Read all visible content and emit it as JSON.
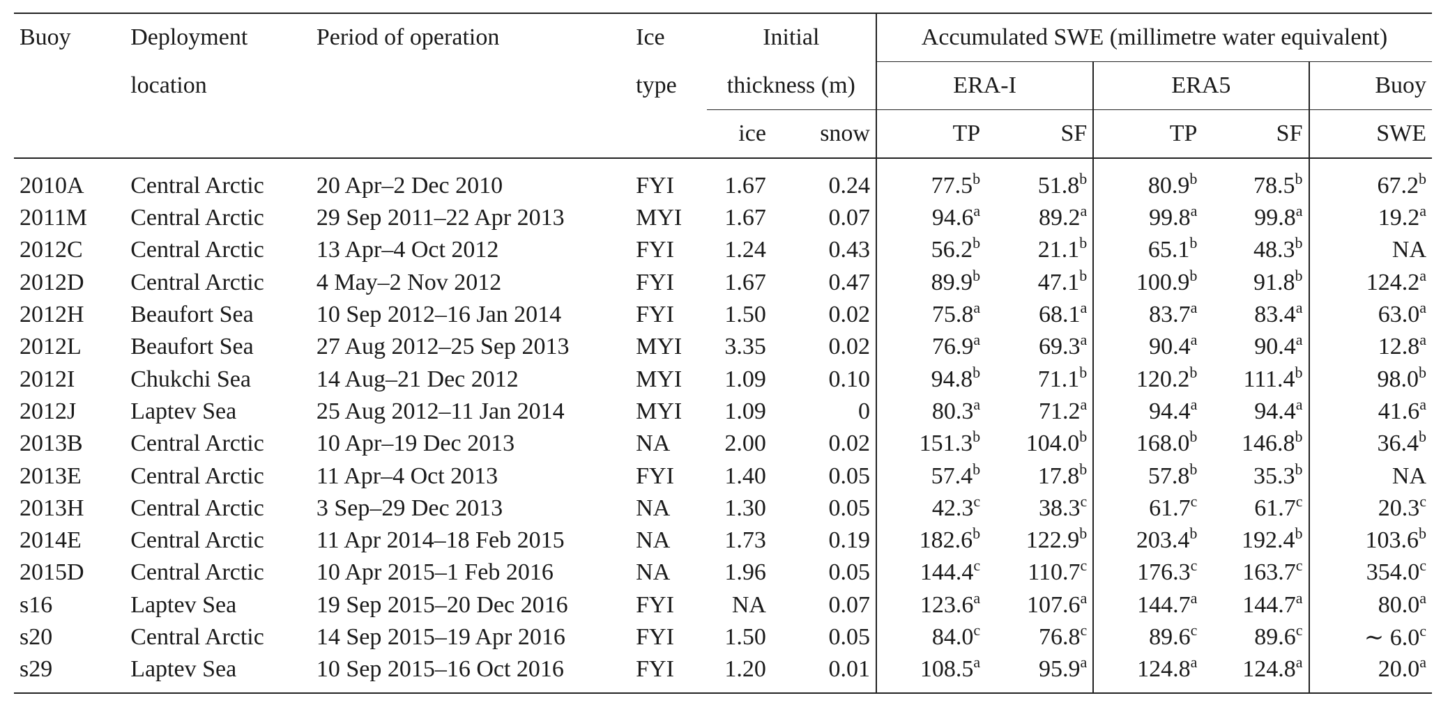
{
  "header": {
    "buoy": "Buoy",
    "deployment_line1": "Deployment",
    "deployment_line2": "location",
    "period": "Period of operation",
    "ice_type_line1": "Ice",
    "ice_type_line2": "type",
    "initial_line1": "Initial",
    "initial_line2": "thickness (m)",
    "ice": "ice",
    "snow": "snow",
    "accumulated": "Accumulated SWE (millimetre water equivalent)",
    "era_i": "ERA-I",
    "era5": "ERA5",
    "buoy_group": "Buoy",
    "tp": "TP",
    "sf": "SF",
    "swe": "SWE"
  },
  "rows": [
    {
      "buoy": "2010A",
      "location": "Central Arctic",
      "period": "20 Apr–2 Dec 2010",
      "ice_type": "FYI",
      "ice": "1.67",
      "snow": "0.24",
      "erai_tp": "77.5",
      "erai_tp_note": "b",
      "erai_sf": "51.8",
      "erai_sf_note": "b",
      "era5_tp": "80.9",
      "era5_tp_note": "b",
      "era5_sf": "78.5",
      "era5_sf_note": "b",
      "swe": "67.2",
      "swe_note": "b"
    },
    {
      "buoy": "2011M",
      "location": "Central Arctic",
      "period": "29 Sep 2011–22 Apr 2013",
      "ice_type": "MYI",
      "ice": "1.67",
      "snow": "0.07",
      "erai_tp": "94.6",
      "erai_tp_note": "a",
      "erai_sf": "89.2",
      "erai_sf_note": "a",
      "era5_tp": "99.8",
      "era5_tp_note": "a",
      "era5_sf": "99.8",
      "era5_sf_note": "a",
      "swe": "19.2",
      "swe_note": "a"
    },
    {
      "buoy": "2012C",
      "location": "Central Arctic",
      "period": "13 Apr–4 Oct 2012",
      "ice_type": "FYI",
      "ice": "1.24",
      "snow": "0.43",
      "erai_tp": "56.2",
      "erai_tp_note": "b",
      "erai_sf": "21.1",
      "erai_sf_note": "b",
      "era5_tp": "65.1",
      "era5_tp_note": "b",
      "era5_sf": "48.3",
      "era5_sf_note": "b",
      "swe": "NA",
      "swe_note": ""
    },
    {
      "buoy": "2012D",
      "location": "Central Arctic",
      "period": "4 May–2 Nov 2012",
      "ice_type": "FYI",
      "ice": "1.67",
      "snow": "0.47",
      "erai_tp": "89.9",
      "erai_tp_note": "b",
      "erai_sf": "47.1",
      "erai_sf_note": "b",
      "era5_tp": "100.9",
      "era5_tp_note": "b",
      "era5_sf": "91.8",
      "era5_sf_note": "b",
      "swe": "124.2",
      "swe_note": "a"
    },
    {
      "buoy": "2012H",
      "location": "Beaufort Sea",
      "period": "10 Sep 2012–16 Jan 2014",
      "ice_type": "FYI",
      "ice": "1.50",
      "snow": "0.02",
      "erai_tp": "75.8",
      "erai_tp_note": "a",
      "erai_sf": "68.1",
      "erai_sf_note": "a",
      "era5_tp": "83.7",
      "era5_tp_note": "a",
      "era5_sf": "83.4",
      "era5_sf_note": "a",
      "swe": "63.0",
      "swe_note": "a"
    },
    {
      "buoy": "2012L",
      "location": "Beaufort Sea",
      "period": "27 Aug 2012–25 Sep 2013",
      "ice_type": "MYI",
      "ice": "3.35",
      "snow": "0.02",
      "erai_tp": "76.9",
      "erai_tp_note": "a",
      "erai_sf": "69.3",
      "erai_sf_note": "a",
      "era5_tp": "90.4",
      "era5_tp_note": "a",
      "era5_sf": "90.4",
      "era5_sf_note": "a",
      "swe": "12.8",
      "swe_note": "a"
    },
    {
      "buoy": "2012I",
      "location": "Chukchi Sea",
      "period": "14 Aug–21 Dec 2012",
      "ice_type": "MYI",
      "ice": "1.09",
      "snow": "0.10",
      "erai_tp": "94.8",
      "erai_tp_note": "b",
      "erai_sf": "71.1",
      "erai_sf_note": "b",
      "era5_tp": "120.2",
      "era5_tp_note": "b",
      "era5_sf": "111.4",
      "era5_sf_note": "b",
      "swe": "98.0",
      "swe_note": "b"
    },
    {
      "buoy": "2012J",
      "location": "Laptev Sea",
      "period": "25 Aug 2012–11 Jan 2014",
      "ice_type": "MYI",
      "ice": "1.09",
      "snow": "0",
      "erai_tp": "80.3",
      "erai_tp_note": "a",
      "erai_sf": "71.2",
      "erai_sf_note": "a",
      "era5_tp": "94.4",
      "era5_tp_note": "a",
      "era5_sf": "94.4",
      "era5_sf_note": "a",
      "swe": "41.6",
      "swe_note": "a"
    },
    {
      "buoy": "2013B",
      "location": "Central Arctic",
      "period": "10 Apr–19 Dec 2013",
      "ice_type": "NA",
      "ice": "2.00",
      "snow": "0.02",
      "erai_tp": "151.3",
      "erai_tp_note": "b",
      "erai_sf": "104.0",
      "erai_sf_note": "b",
      "era5_tp": "168.0",
      "era5_tp_note": "b",
      "era5_sf": "146.8",
      "era5_sf_note": "b",
      "swe": "36.4",
      "swe_note": "b"
    },
    {
      "buoy": "2013E",
      "location": "Central Arctic",
      "period": "11 Apr–4 Oct 2013",
      "ice_type": "FYI",
      "ice": "1.40",
      "snow": "0.05",
      "erai_tp": "57.4",
      "erai_tp_note": "b",
      "erai_sf": "17.8",
      "erai_sf_note": "b",
      "era5_tp": "57.8",
      "era5_tp_note": "b",
      "era5_sf": "35.3",
      "era5_sf_note": "b",
      "swe": "NA",
      "swe_note": ""
    },
    {
      "buoy": "2013H",
      "location": "Central Arctic",
      "period": "3 Sep–29 Dec 2013",
      "ice_type": "NA",
      "ice": "1.30",
      "snow": "0.05",
      "erai_tp": "42.3",
      "erai_tp_note": "c",
      "erai_sf": "38.3",
      "erai_sf_note": "c",
      "era5_tp": "61.7",
      "era5_tp_note": "c",
      "era5_sf": "61.7",
      "era5_sf_note": "c",
      "swe": "20.3",
      "swe_note": "c"
    },
    {
      "buoy": "2014E",
      "location": "Central Arctic",
      "period": "11 Apr 2014–18 Feb 2015",
      "ice_type": "NA",
      "ice": "1.73",
      "snow": "0.19",
      "erai_tp": "182.6",
      "erai_tp_note": "b",
      "erai_sf": "122.9",
      "erai_sf_note": "b",
      "era5_tp": "203.4",
      "era5_tp_note": "b",
      "era5_sf": "192.4",
      "era5_sf_note": "b",
      "swe": "103.6",
      "swe_note": "b"
    },
    {
      "buoy": "2015D",
      "location": "Central Arctic",
      "period": "10 Apr 2015–1 Feb 2016",
      "ice_type": "NA",
      "ice": "1.96",
      "snow": "0.05",
      "erai_tp": "144.4",
      "erai_tp_note": "c",
      "erai_sf": "110.7",
      "erai_sf_note": "c",
      "era5_tp": "176.3",
      "era5_tp_note": "c",
      "era5_sf": "163.7",
      "era5_sf_note": "c",
      "swe": "354.0",
      "swe_note": "c"
    },
    {
      "buoy": "s16",
      "location": "Laptev Sea",
      "period": "19 Sep 2015–20 Dec 2016",
      "ice_type": "FYI",
      "ice": "NA",
      "snow": "0.07",
      "erai_tp": "123.6",
      "erai_tp_note": "a",
      "erai_sf": "107.6",
      "erai_sf_note": "a",
      "era5_tp": "144.7",
      "era5_tp_note": "a",
      "era5_sf": "144.7",
      "era5_sf_note": "a",
      "swe": "80.0",
      "swe_note": "a"
    },
    {
      "buoy": "s20",
      "location": "Central Arctic",
      "period": "14 Sep 2015–19 Apr 2016",
      "ice_type": "FYI",
      "ice": "1.50",
      "snow": "0.05",
      "erai_tp": "84.0",
      "erai_tp_note": "c",
      "erai_sf": "76.8",
      "erai_sf_note": "c",
      "era5_tp": "89.6",
      "era5_tp_note": "c",
      "era5_sf": "89.6",
      "era5_sf_note": "c",
      "swe": "∼ 6.0",
      "swe_note": "c"
    },
    {
      "buoy": "s29",
      "location": "Laptev Sea",
      "period": "10 Sep 2015–16 Oct 2016",
      "ice_type": "FYI",
      "ice": "1.20",
      "snow": "0.01",
      "erai_tp": "108.5",
      "erai_tp_note": "a",
      "erai_sf": "95.9",
      "erai_sf_note": "a",
      "era5_tp": "124.8",
      "era5_tp_note": "a",
      "era5_sf": "124.8",
      "era5_sf_note": "a",
      "swe": "20.0",
      "swe_note": "a"
    }
  ]
}
